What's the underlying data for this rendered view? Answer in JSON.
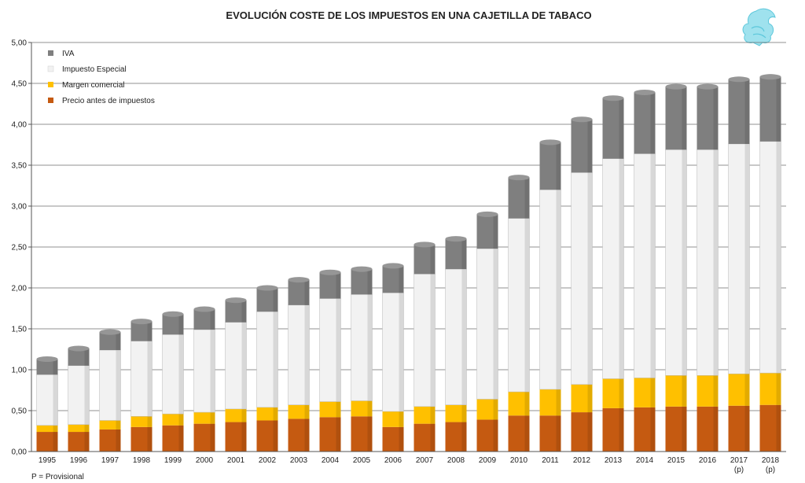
{
  "chart_data": {
    "type": "bar",
    "stacked": true,
    "title": "EVOLUCIÓN COSTE DE LOS IMPUESTOS EN UNA CAJETILLA DE TABACO",
    "xlabel": "",
    "ylabel": "",
    "ylim": [
      0,
      5
    ],
    "y_ticks": [
      "0,00",
      "0,50",
      "1,00",
      "1,50",
      "2,00",
      "2,50",
      "3,00",
      "3,50",
      "4,00",
      "4,50",
      "5,00"
    ],
    "grid": true,
    "legend_position": "top-left",
    "categories": [
      "1995",
      "1996",
      "1997",
      "1998",
      "1999",
      "2000",
      "2001",
      "2002",
      "2003",
      "2004",
      "2005",
      "2006",
      "2007",
      "2008",
      "2009",
      "2010",
      "2011",
      "2012",
      "2013",
      "2014",
      "2015",
      "2016",
      "2017",
      "2018"
    ],
    "category_notes": [
      "",
      "",
      "",
      "",
      "",
      "",
      "",
      "",
      "",
      "",
      "",
      "",
      "",
      "",
      "",
      "",
      "",
      "",
      "",
      "",
      "",
      "",
      "(p)",
      "(p)"
    ],
    "series": [
      {
        "name": "Precio antes de impuestos",
        "color": "#c55a11",
        "values": [
          0.24,
          0.24,
          0.27,
          0.3,
          0.32,
          0.34,
          0.36,
          0.38,
          0.4,
          0.42,
          0.43,
          0.3,
          0.34,
          0.36,
          0.39,
          0.44,
          0.44,
          0.48,
          0.53,
          0.54,
          0.55,
          0.55,
          0.56,
          0.57
        ]
      },
      {
        "name": "Margen comercial",
        "color": "#ffc000",
        "values": [
          0.08,
          0.09,
          0.11,
          0.13,
          0.14,
          0.14,
          0.16,
          0.16,
          0.17,
          0.19,
          0.19,
          0.19,
          0.21,
          0.21,
          0.25,
          0.29,
          0.32,
          0.34,
          0.36,
          0.36,
          0.38,
          0.38,
          0.39,
          0.39
        ]
      },
      {
        "name": "Impuesto Especial",
        "color": "#f2f2f2",
        "values": [
          0.62,
          0.72,
          0.86,
          0.92,
          0.97,
          1.01,
          1.06,
          1.17,
          1.22,
          1.26,
          1.3,
          1.45,
          1.62,
          1.66,
          1.84,
          2.12,
          2.44,
          2.59,
          2.69,
          2.74,
          2.76,
          2.76,
          2.81,
          2.83
        ]
      },
      {
        "name": "IVA",
        "color": "#7f7f7f",
        "values": [
          0.19,
          0.21,
          0.22,
          0.24,
          0.25,
          0.25,
          0.27,
          0.29,
          0.31,
          0.32,
          0.31,
          0.33,
          0.36,
          0.37,
          0.42,
          0.5,
          0.58,
          0.65,
          0.74,
          0.75,
          0.77,
          0.77,
          0.79,
          0.79
        ]
      }
    ],
    "legend_order": [
      "IVA",
      "Impuesto Especial",
      "Margen comercial",
      "Precio antes de impuestos"
    ],
    "footnote": "P = Provisional"
  }
}
